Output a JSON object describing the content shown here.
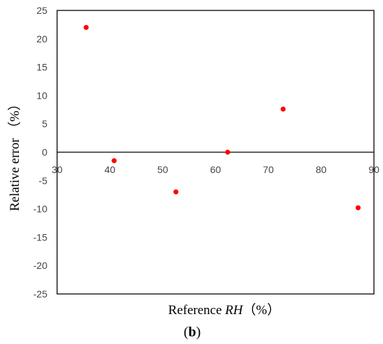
{
  "chart_data": {
    "type": "scatter",
    "title": "",
    "xlabel_prefix": "Reference ",
    "xlabel_italic": "RH",
    "xlabel_suffix": "（%）",
    "ylabel": "Relative error （%）",
    "caption_open": "(",
    "caption_bold": "b",
    "caption_close": ")",
    "xlim": [
      30,
      90
    ],
    "ylim": [
      -25,
      25
    ],
    "x_ticks": [
      "30",
      "40",
      "50",
      "60",
      "70",
      "80",
      "90"
    ],
    "y_ticks": [
      "25",
      "20",
      "15",
      "10",
      "5",
      "0",
      "-5",
      "-10",
      "-15",
      "-20",
      "-25"
    ],
    "grid": false,
    "legend": "none",
    "point_color": "#ff0000",
    "x": [
      35.5,
      40.8,
      52.5,
      62.3,
      72.8,
      87.0
    ],
    "y": [
      22.0,
      -1.5,
      -7.0,
      0.0,
      7.6,
      -9.8
    ]
  }
}
